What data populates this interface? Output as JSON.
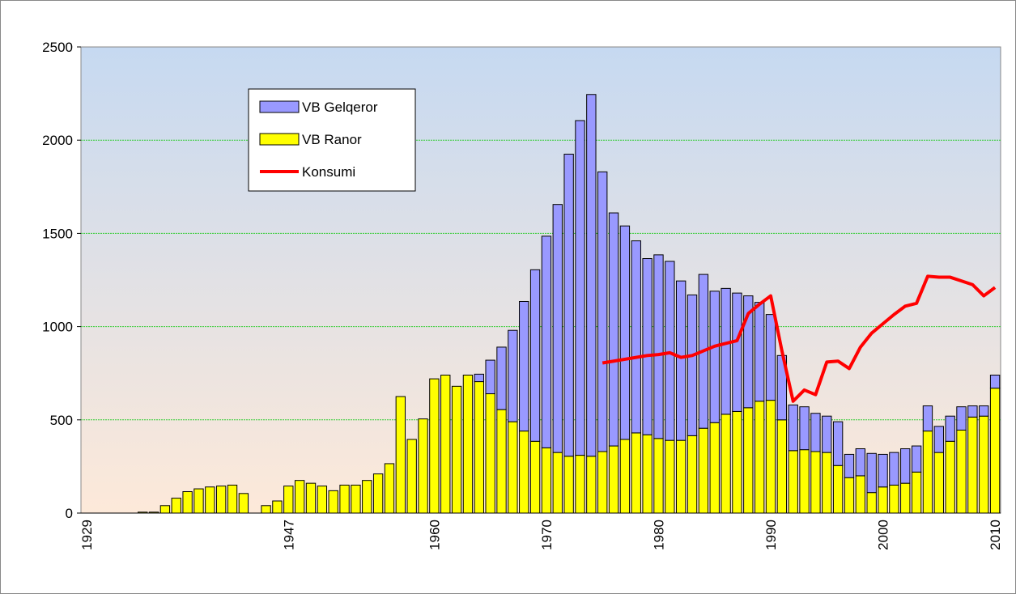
{
  "chart_data": {
    "type": "bar",
    "categories": [
      "1929",
      null,
      null,
      null,
      null,
      null,
      null,
      null,
      null,
      null,
      null,
      null,
      null,
      null,
      null,
      null,
      null,
      null,
      "1947",
      null,
      null,
      null,
      null,
      null,
      null,
      null,
      null,
      null,
      null,
      null,
      null,
      "1960",
      null,
      null,
      null,
      null,
      null,
      null,
      null,
      null,
      null,
      "1970",
      null,
      null,
      null,
      null,
      null,
      null,
      null,
      null,
      null,
      "1980",
      null,
      null,
      null,
      null,
      null,
      null,
      null,
      null,
      null,
      "1990",
      null,
      null,
      null,
      null,
      null,
      null,
      null,
      null,
      null,
      "2000",
      null,
      null,
      null,
      null,
      null,
      null,
      null,
      null,
      null,
      "2010"
    ],
    "series": [
      {
        "name": "VB Gelqeror",
        "color": "#9999ff",
        "values": [
          0,
          0,
          0,
          0,
          0,
          0,
          0,
          0,
          0,
          0,
          0,
          0,
          0,
          0,
          0,
          0,
          0,
          0,
          0,
          0,
          0,
          0,
          0,
          0,
          0,
          0,
          0,
          0,
          0,
          0,
          0,
          0,
          0,
          0,
          0,
          40,
          180,
          335,
          490,
          695,
          920,
          1135,
          1330,
          1620,
          1795,
          1940,
          1500,
          1250,
          1145,
          1030,
          945,
          985,
          960,
          855,
          755,
          825,
          705,
          675,
          635,
          600,
          530,
          460,
          345,
          245,
          230,
          205,
          195,
          235,
          125,
          145,
          210,
          175,
          175,
          185,
          140,
          135,
          140,
          135,
          125,
          60,
          55,
          70
        ]
      },
      {
        "name": "VB Ranor",
        "color": "#ffff00",
        "values": [
          0,
          0,
          0,
          0,
          0,
          5,
          5,
          40,
          80,
          115,
          130,
          140,
          145,
          150,
          105,
          0,
          40,
          65,
          145,
          175,
          160,
          145,
          120,
          150,
          150,
          175,
          210,
          265,
          625,
          395,
          505,
          720,
          740,
          680,
          740,
          705,
          640,
          555,
          490,
          440,
          385,
          350,
          325,
          305,
          310,
          305,
          330,
          360,
          395,
          430,
          420,
          400,
          390,
          390,
          415,
          455,
          485,
          530,
          545,
          565,
          600,
          605,
          500,
          335,
          340,
          330,
          325,
          255,
          190,
          200,
          110,
          140,
          150,
          160,
          220,
          440,
          325,
          385,
          445,
          515,
          520,
          670
        ]
      },
      {
        "name": "Konsumi",
        "type": "line",
        "color": "#ff0000",
        "values": [
          null,
          null,
          null,
          null,
          null,
          null,
          null,
          null,
          null,
          null,
          null,
          null,
          null,
          null,
          null,
          null,
          null,
          null,
          null,
          null,
          null,
          null,
          null,
          null,
          null,
          null,
          null,
          null,
          null,
          null,
          null,
          null,
          null,
          null,
          null,
          null,
          null,
          null,
          null,
          null,
          null,
          null,
          null,
          null,
          null,
          null,
          805,
          815,
          825,
          835,
          845,
          850,
          860,
          835,
          845,
          870,
          895,
          910,
          925,
          1070,
          1120,
          1165,
          870,
          600,
          660,
          635,
          810,
          815,
          775,
          890,
          965,
          1015,
          1065,
          1110,
          1125,
          1270,
          1265,
          1265,
          1245,
          1225,
          1165,
          1210
        ]
      }
    ],
    "ylim": [
      0,
      2500
    ],
    "yticks": [
      0,
      500,
      1000,
      1500,
      2000,
      2500
    ],
    "grid": true
  }
}
